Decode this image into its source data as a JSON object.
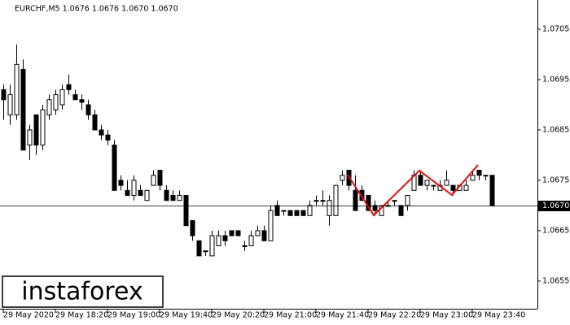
{
  "chart_data": {
    "type": "candlestick",
    "title": "EURCHF,M5  1.0676 1.0676 1.0670 1.0670",
    "watermark": "instaforex",
    "x": [
      "29 May 17:40",
      "29 May 17:45",
      "29 May 17:50",
      "29 May 17:55",
      "29 May 18:00",
      "29 May 18:05",
      "29 May 18:10",
      "29 May 18:15",
      "29 May 18:20",
      "29 May 18:25",
      "29 May 18:30",
      "29 May 18:35",
      "29 May 18:40",
      "29 May 18:45",
      "29 May 18:50",
      "29 May 18:55",
      "29 May 19:00",
      "29 May 19:05",
      "29 May 19:10",
      "29 May 19:15",
      "29 May 19:20",
      "29 May 19:25",
      "29 May 19:30",
      "29 May 19:35",
      "29 May 19:40",
      "29 May 19:45",
      "29 May 19:50",
      "29 May 19:55",
      "29 May 20:00",
      "29 May 20:05",
      "29 May 20:10",
      "29 May 20:15",
      "29 May 20:20",
      "29 May 20:25",
      "29 May 20:30",
      "29 May 20:35",
      "29 May 20:40",
      "29 May 20:45",
      "29 May 20:50",
      "29 May 20:55",
      "29 May 21:00",
      "29 May 21:05",
      "29 May 21:10",
      "29 May 21:15",
      "29 May 21:20",
      "29 May 21:25",
      "29 May 21:30",
      "29 May 21:35",
      "29 May 21:40",
      "29 May 21:45",
      "29 May 21:50",
      "29 May 21:55",
      "29 May 22:00",
      "29 May 22:05",
      "29 May 22:10",
      "29 May 22:15",
      "29 May 22:20",
      "29 May 22:25",
      "29 May 22:30",
      "29 May 22:35",
      "29 May 22:40",
      "29 May 22:45",
      "29 May 22:50",
      "29 May 22:55",
      "29 May 23:00",
      "29 May 23:05",
      "29 May 23:10",
      "29 May 23:15",
      "29 May 23:20",
      "29 May 23:25",
      "29 May 23:30",
      "29 May 23:35",
      "29 May 23:40",
      "29 May 23:45",
      "29 May 23:50",
      "29 May 23:55"
    ],
    "open": [
      1.0693,
      1.0688,
      1.0688,
      1.0697,
      1.0682,
      1.0688,
      1.0682,
      1.0688,
      1.0689,
      1.069,
      1.0694,
      1.0692,
      1.0691,
      1.069,
      1.0688,
      1.0685,
      1.0684,
      1.0682,
      1.0675,
      1.0673,
      1.0672,
      1.0673,
      1.0671,
      1.0674,
      1.0677,
      1.0673,
      1.0672,
      1.0671,
      1.0672,
      1.0667,
      1.0663,
      1.0661,
      1.066,
      1.0662,
      1.0664,
      1.0665,
      1.0665,
      1.0662,
      1.0662,
      1.0664,
      1.0665,
      1.0663,
      1.067,
      1.0669,
      1.0669,
      1.0669,
      1.0669,
      1.0668,
      1.0671,
      1.0671,
      1.0668,
      1.0668,
      1.0675,
      1.0677,
      1.0673,
      1.0673,
      1.0672,
      1.067,
      1.0668,
      1.067,
      1.0671,
      1.067,
      1.067,
      1.0673,
      1.0676,
      1.0674,
      1.0674,
      1.0673,
      1.0674,
      1.0674,
      1.0673,
      1.0673,
      1.0675,
      1.0677,
      1.0676,
      1.0676
    ],
    "high": [
      1.0694,
      1.0694,
      1.0702,
      1.0699,
      1.0686,
      1.0688,
      1.069,
      1.0692,
      1.0693,
      1.0694,
      1.0696,
      1.0693,
      1.0692,
      1.0691,
      1.0689,
      1.0686,
      1.0685,
      1.0683,
      1.0676,
      1.0675,
      1.0676,
      1.0674,
      1.0673,
      1.0677,
      1.0677,
      1.0674,
      1.0673,
      1.0673,
      1.0672,
      1.0667,
      1.0663,
      1.0661,
      1.0665,
      1.0665,
      1.0665,
      1.0665,
      1.0665,
      1.0663,
      1.0665,
      1.0666,
      1.0666,
      1.067,
      1.0671,
      1.0669,
      1.0669,
      1.0669,
      1.0669,
      1.0671,
      1.0672,
      1.0673,
      1.0672,
      1.0674,
      1.0677,
      1.0677,
      1.0676,
      1.0674,
      1.0672,
      1.0671,
      1.067,
      1.0671,
      1.0671,
      1.067,
      1.0672,
      1.0677,
      1.0677,
      1.0675,
      1.0674,
      1.0675,
      1.0677,
      1.0674,
      1.0674,
      1.0675,
      1.0677,
      1.0677,
      1.0676,
      1.0676
    ],
    "low": [
      1.0687,
      1.0686,
      1.0687,
      1.0681,
      1.0679,
      1.068,
      1.0681,
      1.0687,
      1.0688,
      1.0689,
      1.0692,
      1.0691,
      1.0689,
      1.0687,
      1.0685,
      1.0683,
      1.0682,
      1.0673,
      1.0673,
      1.0672,
      1.0671,
      1.0672,
      1.0671,
      1.0674,
      1.0673,
      1.0671,
      1.0671,
      1.0671,
      1.0666,
      1.0663,
      1.066,
      1.066,
      1.066,
      1.0662,
      1.0662,
      1.0664,
      1.0664,
      1.0661,
      1.0662,
      1.0664,
      1.0663,
      1.0663,
      1.0668,
      1.0668,
      1.0668,
      1.0668,
      1.0668,
      1.0668,
      1.067,
      1.067,
      1.0666,
      1.0668,
      1.0674,
      1.0673,
      1.0669,
      1.0671,
      1.0669,
      1.0668,
      1.0668,
      1.067,
      1.067,
      1.0668,
      1.0669,
      1.0673,
      1.0674,
      1.0673,
      1.0673,
      1.0673,
      1.0674,
      1.0672,
      1.0673,
      1.0673,
      1.0675,
      1.0675,
      1.0675,
      1.067
    ],
    "close": [
      1.0691,
      1.0692,
      1.0698,
      1.0681,
      1.0685,
      1.0682,
      1.0689,
      1.0691,
      1.0692,
      1.0693,
      1.0693,
      1.0691,
      1.06905,
      1.0688,
      1.0685,
      1.0684,
      1.0683,
      1.0673,
      1.0674,
      1.0672,
      1.0675,
      1.0672,
      1.0673,
      1.0676,
      1.0674,
      1.0671,
      1.0671,
      1.0672,
      1.0666,
      1.0664,
      1.066,
      1.0661,
      1.0664,
      1.0664,
      1.0663,
      1.0664,
      1.0664,
      1.0662,
      1.0664,
      1.0665,
      1.0663,
      1.0669,
      1.0668,
      1.0669,
      1.0668,
      1.0668,
      1.0668,
      1.067,
      1.0671,
      1.0671,
      1.0671,
      1.0674,
      1.0676,
      1.0674,
      1.0669,
      1.0671,
      1.0669,
      1.0669,
      1.067,
      1.067,
      1.0671,
      1.0668,
      1.0672,
      1.0676,
      1.0674,
      1.0675,
      1.0674,
      1.0674,
      1.0675,
      1.0673,
      1.0674,
      1.0674,
      1.0676,
      1.0676,
      1.0676,
      1.067
    ],
    "up_color": "#ffffff",
    "down_color": "#000000",
    "ylim": [
      1.06495,
      1.07108
    ],
    "yticks": [
      1.0655,
      1.0665,
      1.0675,
      1.0685,
      1.0695,
      1.0705
    ],
    "xticks": [
      {
        "value": "29 May 17:40",
        "label": "29 May 2020"
      },
      {
        "value": "29 May 18:20",
        "label": "29 May 18:20"
      },
      {
        "value": "29 May 19:00",
        "label": "29 May 19:00"
      },
      {
        "value": "29 May 19:40",
        "label": "29 May 19:40"
      },
      {
        "value": "29 May 20:20",
        "label": "29 May 20:20"
      },
      {
        "value": "29 May 21:00",
        "label": "29 May 21:00"
      },
      {
        "value": "29 May 21:40",
        "label": "29 May 21:40"
      },
      {
        "value": "29 May 22:20",
        "label": "29 May 22:20"
      },
      {
        "value": "29 May 23:00",
        "label": "29 May 23:00"
      },
      {
        "value": "29 May 23:40",
        "label": "29 May 23:40"
      }
    ],
    "current_price": {
      "value": 1.067,
      "label": "1.0670"
    }
  }
}
